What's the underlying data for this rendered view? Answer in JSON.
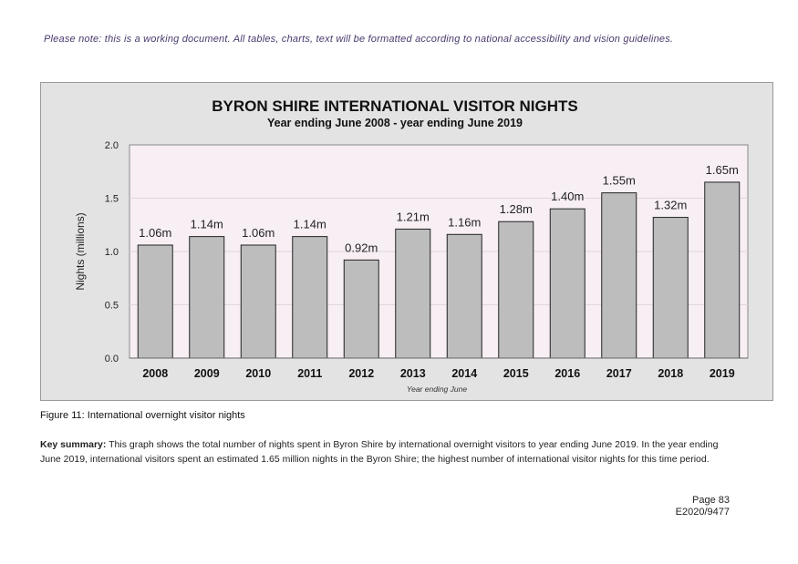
{
  "document": {
    "note": "Please note: this is a working document. All tables, charts, text will be formatted according to national accessibility and vision guidelines.",
    "caption": "Figure 11: International overnight visitor nights",
    "summary_label": "Key summary:",
    "summary_text": "This graph shows the total number of nights spent in Byron Shire by international overnight visitors to year ending June 2019. In the year ending June 2019, international visitors spent an estimated 1.65 million nights in the Byron Shire; the highest number of international visitor nights for this time period.",
    "page_number": "Page 83",
    "reference": "E2020/9477"
  },
  "colors": {
    "note_text": "#4a3a6e",
    "frame_background": "#e3e3e3",
    "plot_background": "#f7eff4",
    "bar_fill": "#bdbdbd",
    "bar_stroke": "#222222"
  },
  "chart_data": {
    "type": "bar",
    "title": "BYRON SHIRE INTERNATIONAL VISITOR NIGHTS",
    "subtitle": "Year ending June 2008 - year ending June 2019",
    "xlabel": "Year ending June",
    "ylabel": "Nights (millions)",
    "categories": [
      "2008",
      "2009",
      "2010",
      "2011",
      "2012",
      "2013",
      "2014",
      "2015",
      "2016",
      "2017",
      "2018",
      "2019"
    ],
    "values": [
      1.06,
      1.14,
      1.06,
      1.14,
      0.92,
      1.21,
      1.16,
      1.28,
      1.4,
      1.55,
      1.32,
      1.65
    ],
    "data_labels": [
      "1.06m",
      "1.14m",
      "1.06m",
      "1.14m",
      "0.92m",
      "1.21m",
      "1.16m",
      "1.28m",
      "1.40m",
      "1.55m",
      "1.32m",
      "1.65m"
    ],
    "yticks": [
      "0.0",
      "0.5",
      "1.0",
      "1.5",
      "2.0"
    ],
    "ylim": [
      0,
      2.0
    ],
    "grid": true,
    "legend": "none"
  }
}
